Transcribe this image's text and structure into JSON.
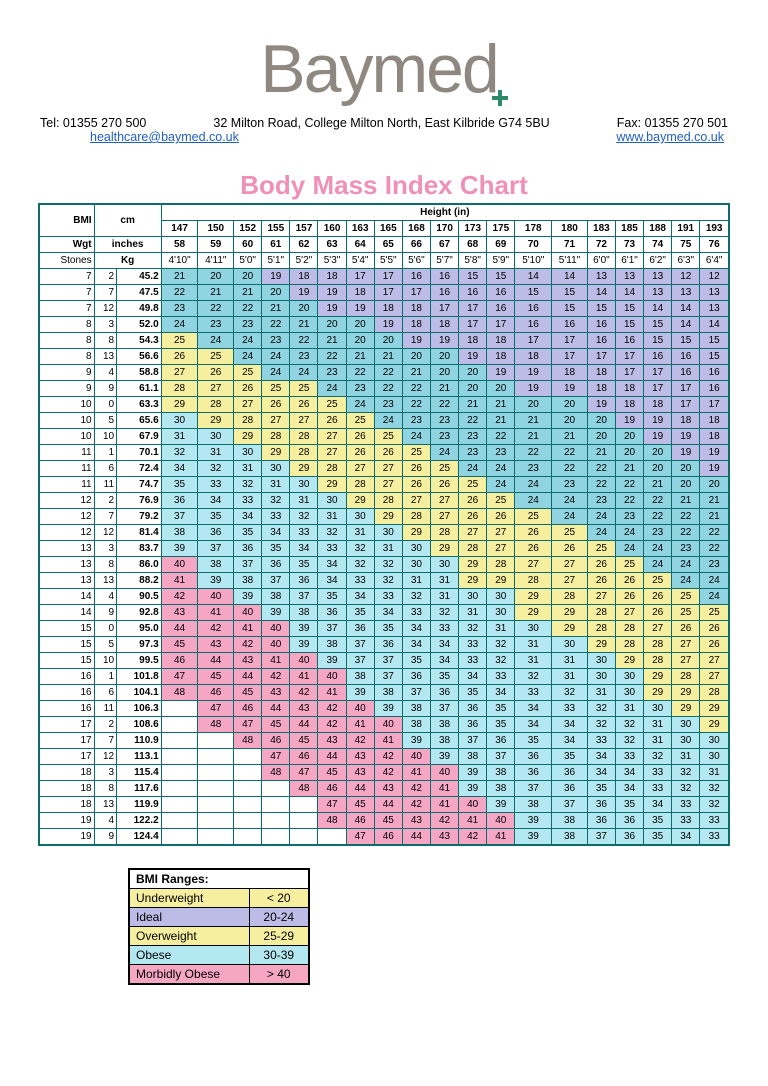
{
  "logo_text": "Baymed",
  "contact": {
    "tel": "Tel: 01355 270 500",
    "addr": "32 Milton Road, College Milton North, East Kilbride G74 5BU",
    "fax": "Fax: 01355 270 501",
    "email": "healthcare@baymed.co.uk",
    "web": "www.baymed.co.uk"
  },
  "chart": {
    "title": "Body Mass Index Chart",
    "height_label": "Height (in)",
    "corner_labels": {
      "bmi": "BMI",
      "cm": "cm",
      "wgt": "Wgt",
      "inches": "inches",
      "stones": "Stones",
      "kg": "Kg"
    },
    "colors": {
      "under": "#bcbce6",
      "ideal": "#8fd4e0",
      "over": "#f7efa0",
      "obese": "#b4e8f0",
      "morbid": "#f5a6c2",
      "bg": "#ffffff",
      "border": "#0d6b6b"
    },
    "heights_cm": [
      "147",
      "150",
      "152",
      "155",
      "157",
      "160",
      "163",
      "165",
      "168",
      "170",
      "173",
      "175",
      "178",
      "180",
      "183",
      "185",
      "188",
      "191",
      "193"
    ],
    "heights_in": [
      "58",
      "59",
      "60",
      "61",
      "62",
      "63",
      "64",
      "65",
      "66",
      "67",
      "68",
      "69",
      "70",
      "71",
      "72",
      "73",
      "74",
      "75",
      "76"
    ],
    "heights_ft": [
      "4'10\"",
      "4'11\"",
      "5'0\"",
      "5'1\"",
      "5'2\"",
      "5'3\"",
      "5'4\"",
      "5'5\"",
      "5'6\"",
      "5'7\"",
      "5'8\"",
      "5'9\"",
      "5'10\"",
      "5'11\"",
      "6'0\"",
      "6'1\"",
      "6'2\"",
      "6'3\"",
      "6'4\""
    ],
    "rows": [
      {
        "st": "7",
        "lb": "2",
        "kg": "45.2"
      },
      {
        "st": "7",
        "lb": "7",
        "kg": "47.5"
      },
      {
        "st": "7",
        "lb": "12",
        "kg": "49.8"
      },
      {
        "st": "8",
        "lb": "3",
        "kg": "52.0"
      },
      {
        "st": "8",
        "lb": "8",
        "kg": "54.3"
      },
      {
        "st": "8",
        "lb": "13",
        "kg": "56.6"
      },
      {
        "st": "9",
        "lb": "4",
        "kg": "58.8"
      },
      {
        "st": "9",
        "lb": "9",
        "kg": "61.1"
      },
      {
        "st": "10",
        "lb": "0",
        "kg": "63.3"
      },
      {
        "st": "10",
        "lb": "5",
        "kg": "65.6"
      },
      {
        "st": "10",
        "lb": "10",
        "kg": "67.9"
      },
      {
        "st": "11",
        "lb": "1",
        "kg": "70.1"
      },
      {
        "st": "11",
        "lb": "6",
        "kg": "72.4"
      },
      {
        "st": "11",
        "lb": "11",
        "kg": "74.7"
      },
      {
        "st": "12",
        "lb": "2",
        "kg": "76.9"
      },
      {
        "st": "12",
        "lb": "7",
        "kg": "79.2"
      },
      {
        "st": "12",
        "lb": "12",
        "kg": "81.4"
      },
      {
        "st": "13",
        "lb": "3",
        "kg": "83.7"
      },
      {
        "st": "13",
        "lb": "8",
        "kg": "86.0"
      },
      {
        "st": "13",
        "lb": "13",
        "kg": "88.2"
      },
      {
        "st": "14",
        "lb": "4",
        "kg": "90.5"
      },
      {
        "st": "14",
        "lb": "9",
        "kg": "92.8"
      },
      {
        "st": "15",
        "lb": "0",
        "kg": "95.0"
      },
      {
        "st": "15",
        "lb": "5",
        "kg": "97.3"
      },
      {
        "st": "15",
        "lb": "10",
        "kg": "99.5"
      },
      {
        "st": "16",
        "lb": "1",
        "kg": "101.8"
      },
      {
        "st": "16",
        "lb": "6",
        "kg": "104.1"
      },
      {
        "st": "16",
        "lb": "11",
        "kg": "106.3"
      },
      {
        "st": "17",
        "lb": "2",
        "kg": "108.6"
      },
      {
        "st": "17",
        "lb": "7",
        "kg": "110.9"
      },
      {
        "st": "17",
        "lb": "12",
        "kg": "113.1"
      },
      {
        "st": "18",
        "lb": "3",
        "kg": "115.4"
      },
      {
        "st": "18",
        "lb": "8",
        "kg": "117.6"
      },
      {
        "st": "18",
        "lb": "13",
        "kg": "119.9"
      },
      {
        "st": "19",
        "lb": "4",
        "kg": "122.2"
      },
      {
        "st": "19",
        "lb": "9",
        "kg": "124.4"
      }
    ],
    "heights_m": [
      1.47,
      1.5,
      1.52,
      1.55,
      1.57,
      1.6,
      1.63,
      1.65,
      1.68,
      1.7,
      1.73,
      1.75,
      1.78,
      1.8,
      1.83,
      1.85,
      1.88,
      1.91,
      1.93
    ]
  },
  "legend": {
    "title": "BMI Ranges:",
    "rows": [
      {
        "label": "Underweight",
        "range": "< 20",
        "cls": "c-o"
      },
      {
        "label": "Ideal",
        "range": "20-24",
        "cls": "c-u"
      },
      {
        "label": "Overweight",
        "range": "25-29",
        "cls": "c-o"
      },
      {
        "label": "Obese",
        "range": "30-39",
        "cls": "c-b"
      },
      {
        "label": "Morbidly Obese",
        "range": "> 40",
        "cls": "c-m"
      }
    ]
  }
}
